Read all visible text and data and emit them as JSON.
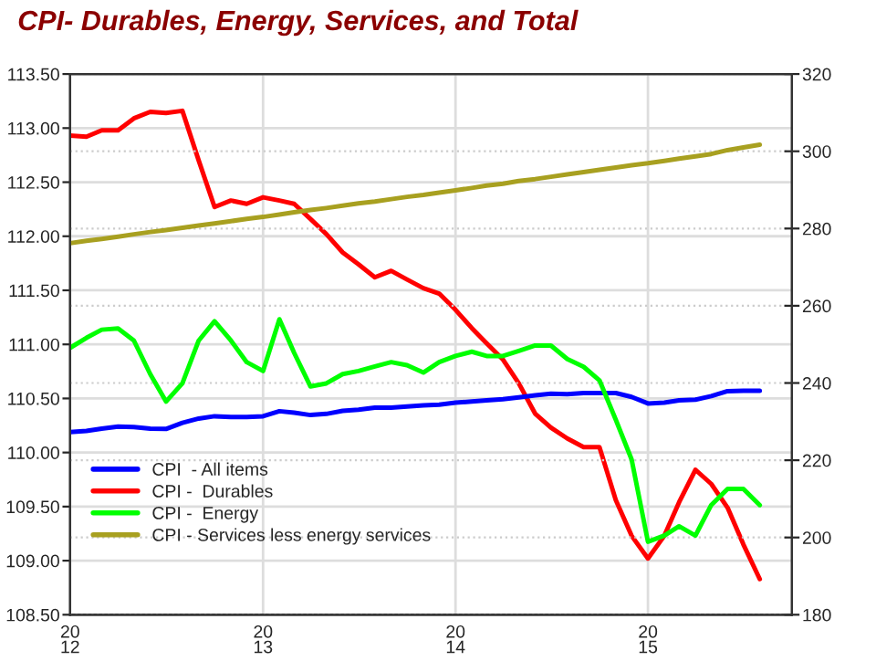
{
  "chart_data": {
    "type": "line",
    "title": "CPI- Durables, Energy, Services, and Total",
    "x": [
      "2012-01",
      "2012-02",
      "2012-03",
      "2012-04",
      "2012-05",
      "2012-06",
      "2012-07",
      "2012-08",
      "2012-09",
      "2012-10",
      "2012-11",
      "2012-12",
      "2013-01",
      "2013-02",
      "2013-03",
      "2013-04",
      "2013-05",
      "2013-06",
      "2013-07",
      "2013-08",
      "2013-09",
      "2013-10",
      "2013-11",
      "2013-12",
      "2014-01",
      "2014-02",
      "2014-03",
      "2014-04",
      "2014-05",
      "2014-06",
      "2014-07",
      "2014-08",
      "2014-09",
      "2014-10",
      "2014-11",
      "2014-12",
      "2015-01",
      "2015-02",
      "2015-03",
      "2015-04",
      "2015-05",
      "2015-06",
      "2015-07",
      "2015-08"
    ],
    "series": [
      {
        "name": "CPI  - All items",
        "color": "#0000ff",
        "axis": "y2",
        "values": [
          227.3,
          227.6,
          228.2,
          228.7,
          228.6,
          228.2,
          228.1,
          229.7,
          230.8,
          231.4,
          231.2,
          231.2,
          231.4,
          232.7,
          232.3,
          231.7,
          232.0,
          232.8,
          233.1,
          233.6,
          233.6,
          233.9,
          234.2,
          234.4,
          234.9,
          235.2,
          235.5,
          235.8,
          236.3,
          236.8,
          237.2,
          237.1,
          237.4,
          237.4,
          237.4,
          236.4,
          234.7,
          234.9,
          235.5,
          235.7,
          236.6,
          237.9,
          238.0,
          238.0
        ]
      },
      {
        "name": "CPI -  Durables",
        "color": "#ff0000",
        "axis": "y",
        "values": [
          112.93,
          112.92,
          112.98,
          112.98,
          113.09,
          113.15,
          113.14,
          113.16,
          112.7,
          112.27,
          112.33,
          112.3,
          112.36,
          112.33,
          112.3,
          112.16,
          112.02,
          111.85,
          111.74,
          111.62,
          111.68,
          111.6,
          111.52,
          111.47,
          111.32,
          111.15,
          111.01,
          110.86,
          110.64,
          110.36,
          110.23,
          110.13,
          110.05,
          110.05,
          109.56,
          109.23,
          109.02,
          109.23,
          109.54,
          109.84,
          109.71,
          109.49,
          109.15,
          108.83
        ]
      },
      {
        "name": "CPI -  Energy",
        "color": "#00ff00",
        "axis": "y2",
        "values": [
          249.1,
          251.7,
          253.8,
          254.1,
          251.0,
          242.3,
          235.2,
          239.9,
          251.0,
          256.0,
          251.0,
          245.4,
          243.1,
          256.5,
          247.8,
          239.1,
          239.9,
          242.3,
          243.1,
          244.3,
          245.4,
          244.6,
          242.7,
          245.4,
          247.0,
          248.1,
          247.0,
          247.0,
          248.3,
          249.7,
          249.7,
          246.2,
          244.2,
          240.7,
          230.5,
          220.2,
          198.9,
          200.5,
          202.9,
          200.5,
          208.4,
          212.6,
          212.6,
          208.4
        ]
      },
      {
        "name": "CPI - Services less energy services",
        "color": "#a8a020",
        "axis": "y2",
        "values": [
          276.2,
          276.8,
          277.3,
          277.9,
          278.5,
          279.1,
          279.6,
          280.2,
          280.8,
          281.3,
          281.9,
          282.5,
          283.0,
          283.6,
          284.2,
          284.8,
          285.3,
          285.9,
          286.5,
          287.0,
          287.6,
          288.2,
          288.7,
          289.3,
          289.9,
          290.5,
          291.1,
          291.6,
          292.3,
          292.8,
          293.4,
          294.0,
          294.6,
          295.2,
          295.8,
          296.4,
          296.9,
          297.5,
          298.1,
          298.7,
          299.3,
          300.3,
          301.0,
          301.7
        ]
      }
    ],
    "ylim": [
      108.5,
      113.5
    ],
    "yticks": [
      {
        "value": 108.5,
        "label": "108.50"
      },
      {
        "value": 109,
        "label": "109.00"
      },
      {
        "value": 109.5,
        "label": "109.50"
      },
      {
        "value": 110,
        "label": "110.00"
      },
      {
        "value": 110.5,
        "label": "110.50"
      },
      {
        "value": 111,
        "label": "111.00"
      },
      {
        "value": 111.5,
        "label": "111.50"
      },
      {
        "value": 112,
        "label": "112.00"
      },
      {
        "value": 112.5,
        "label": "112.50"
      },
      {
        "value": 113,
        "label": "113.00"
      },
      {
        "value": 113.5,
        "label": "113.50"
      }
    ],
    "y2lim": [
      180,
      320
    ],
    "y2ticks": [
      180,
      200,
      220,
      240,
      260,
      280,
      300,
      320
    ],
    "xlim": [
      "2012-01",
      "2015-10"
    ],
    "xticks": [
      {
        "value": "2012-01",
        "label": "20\n12"
      },
      {
        "value": "2013-01",
        "label": "20\n13"
      },
      {
        "value": "2014-01",
        "label": "20\n14"
      },
      {
        "value": "2015-01",
        "label": "20\n15"
      }
    ],
    "grid": true,
    "legend": "bottom left",
    "marker": "none",
    "line_style": "solid"
  }
}
